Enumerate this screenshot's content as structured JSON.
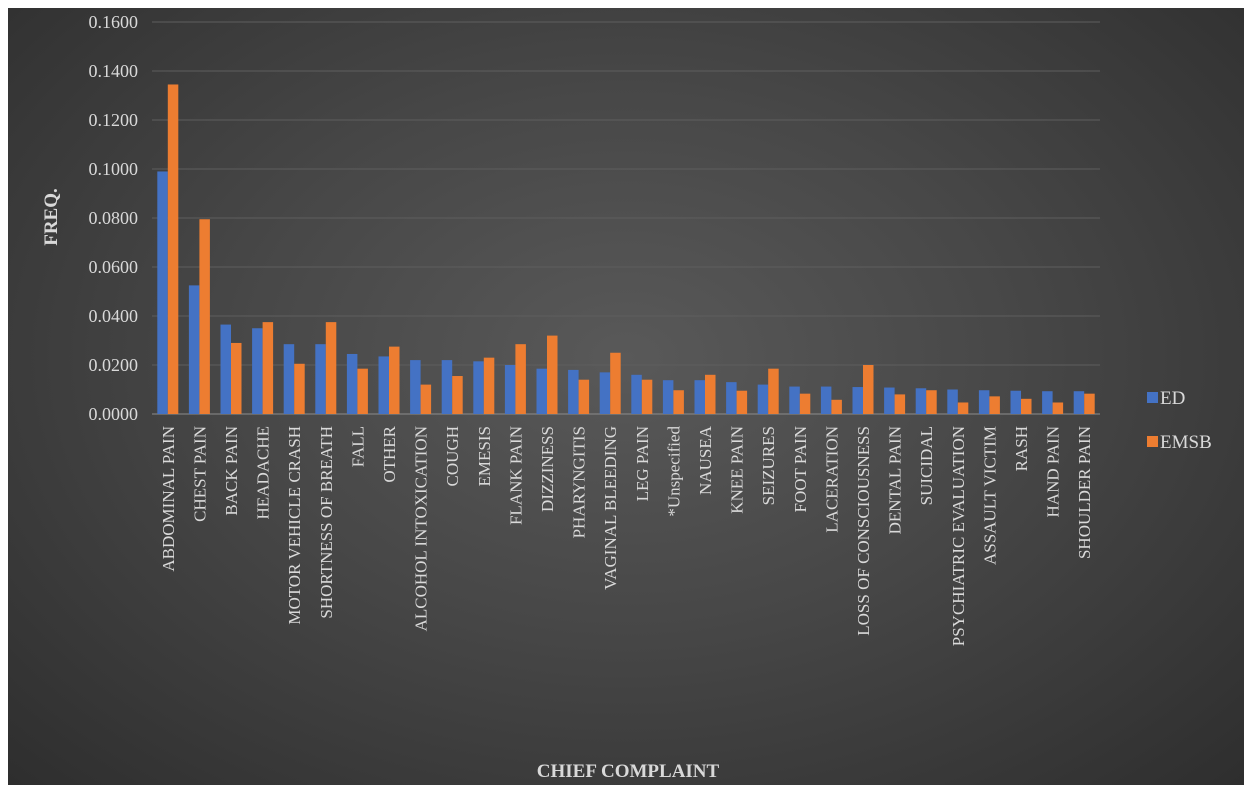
{
  "chart_data": {
    "type": "bar",
    "title": "",
    "xlabel": "CHIEF COMPLAINT",
    "ylabel": "FREQ.",
    "ylim": [
      0,
      0.16
    ],
    "yticks": [
      "0.0000",
      "0.0200",
      "0.0400",
      "0.0600",
      "0.0800",
      "0.1000",
      "0.1200",
      "0.1400",
      "0.1600"
    ],
    "grid": true,
    "legend_position": "right",
    "categories": [
      "ABDOMINAL PAIN",
      "CHEST PAIN",
      "BACK PAIN",
      "HEADACHE",
      "MOTOR VEHICLE CRASH",
      "SHORTNESS OF BREATH",
      "FALL",
      "OTHER",
      "ALCOHOL INTOXICATION",
      "COUGH",
      "EMESIS",
      "FLANK PAIN",
      "DIZZINESS",
      "PHARYNGITIS",
      "VAGINAL BLEEDING",
      "LEG PAIN",
      "*Unspecified",
      "NAUSEA",
      "KNEE PAIN",
      "SEIZURES",
      "FOOT PAIN",
      "LACERATION",
      "LOSS OF CONSCIOUSNESS",
      "DENTAL PAIN",
      "SUICIDAL",
      "PSYCHIATRIC EVALUATION",
      "ASSAULT VICTIM",
      "RASH",
      "HAND PAIN",
      "SHOULDER PAIN"
    ],
    "series": [
      {
        "name": "ED",
        "color": "#4472c4",
        "values": [
          0.099,
          0.0525,
          0.0365,
          0.035,
          0.0285,
          0.0285,
          0.0245,
          0.0235,
          0.022,
          0.022,
          0.0215,
          0.02,
          0.0185,
          0.018,
          0.017,
          0.016,
          0.0138,
          0.0138,
          0.013,
          0.012,
          0.0112,
          0.0112,
          0.011,
          0.0108,
          0.0105,
          0.01,
          0.0097,
          0.0095,
          0.0093,
          0.0093
        ]
      },
      {
        "name": "EMSB",
        "color": "#ed7d31",
        "values": [
          0.1345,
          0.0795,
          0.029,
          0.0375,
          0.0205,
          0.0375,
          0.0185,
          0.0275,
          0.012,
          0.0155,
          0.023,
          0.0285,
          0.032,
          0.014,
          0.025,
          0.014,
          0.0097,
          0.016,
          0.0095,
          0.0185,
          0.0083,
          0.0058,
          0.02,
          0.008,
          0.0097,
          0.0047,
          0.0072,
          0.0062,
          0.0047,
          0.0083
        ]
      }
    ]
  }
}
